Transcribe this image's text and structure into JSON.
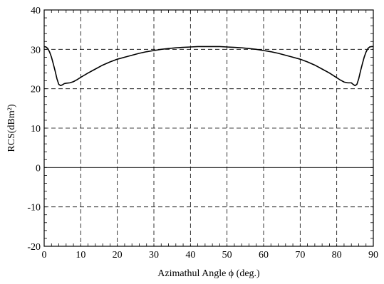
{
  "chart_data": {
    "type": "line",
    "xlabel": "Azimathul Angle  ϕ (deg.)",
    "ylabel": "RCS(dBm²)",
    "xlim": [
      0,
      90
    ],
    "ylim": [
      -20,
      40
    ],
    "xticks": [
      0,
      10,
      20,
      30,
      40,
      50,
      60,
      70,
      80,
      90
    ],
    "yticks": [
      -20,
      -10,
      0,
      10,
      20,
      30,
      40
    ],
    "grid": true,
    "grid_style": "dashed",
    "line_color": "#000000",
    "series": [
      {
        "x": [
          0,
          0.5,
          1,
          1.5,
          2,
          2.5,
          3,
          3.5,
          4,
          4.5,
          5,
          5.5,
          6,
          7,
          8,
          9,
          10,
          12,
          14,
          16,
          18,
          20,
          22,
          24,
          26,
          28,
          30,
          32,
          34,
          36,
          38,
          40,
          42,
          44,
          46,
          48,
          50,
          52,
          54,
          56,
          58,
          60,
          62,
          64,
          66,
          68,
          70,
          72,
          74,
          76,
          78,
          80,
          81,
          82,
          83,
          84,
          84.5,
          85,
          85.5,
          86,
          86.5,
          87,
          87.5,
          88,
          88.5,
          89,
          89.5,
          90
        ],
        "values": [
          30.7,
          30.6,
          30.2,
          29.3,
          28.0,
          26.3,
          24.5,
          22.5,
          21.1,
          20.8,
          21.0,
          21.3,
          21.4,
          21.5,
          21.8,
          22.3,
          22.9,
          24.0,
          25.0,
          26.0,
          26.8,
          27.5,
          28.0,
          28.5,
          29.0,
          29.4,
          29.7,
          30.0,
          30.2,
          30.4,
          30.5,
          30.6,
          30.7,
          30.7,
          30.7,
          30.7,
          30.6,
          30.5,
          30.4,
          30.2,
          30.0,
          29.7,
          29.4,
          29.0,
          28.5,
          28.0,
          27.5,
          26.8,
          26.0,
          25.0,
          24.0,
          22.8,
          22.2,
          21.7,
          21.5,
          21.5,
          21.1,
          20.8,
          21.1,
          22.5,
          24.5,
          26.3,
          28.0,
          29.3,
          30.2,
          30.6,
          30.7,
          30.7
        ]
      }
    ]
  }
}
